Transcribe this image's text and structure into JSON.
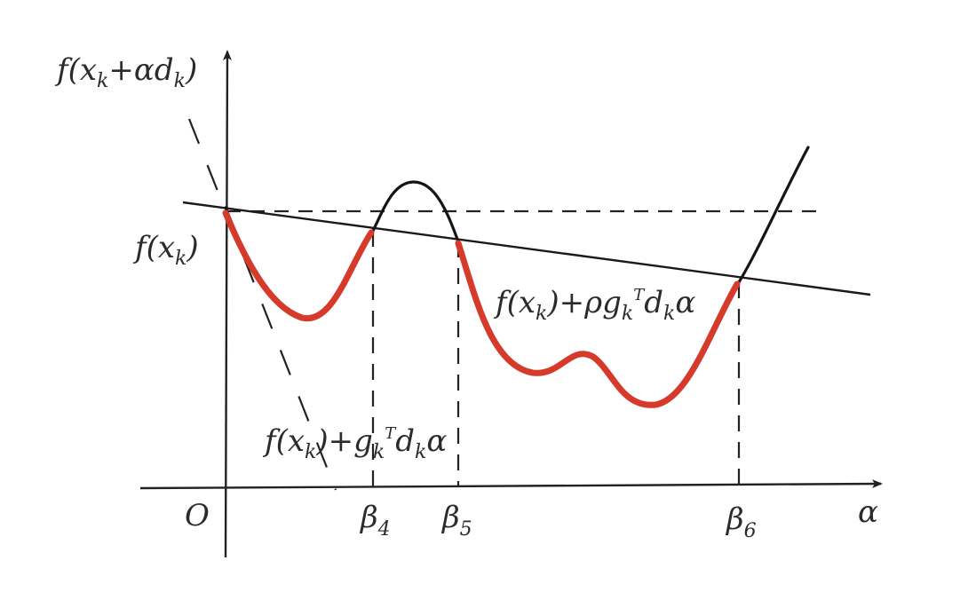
{
  "labels": {
    "y_axis": "f(x_k+αd_k)",
    "fxk": "f(x_k)",
    "origin": "O",
    "alpha": "α",
    "beta4": "β_4",
    "beta5": "β_5",
    "beta6": "β_6",
    "rho_line": "f(x_k)+ρg_k^T d_k α",
    "tangent_line": "f(x_k)+g_k^T d_k α"
  },
  "colors": {
    "acceptable_segments": "#d63a2a",
    "curve": "#151515"
  }
}
